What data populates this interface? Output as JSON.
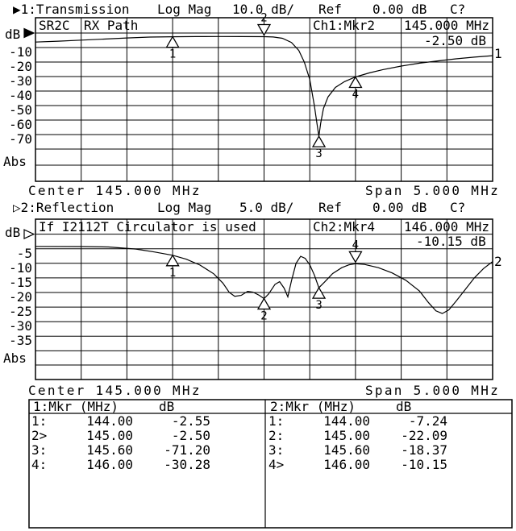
{
  "ch1": {
    "title": {
      "prefix": "▶1:Transmission",
      "mode": "Log Mag",
      "scale": "10.0 dB/",
      "ref_label": "Ref",
      "ref_value": "0.00 dB",
      "cal": "C?"
    },
    "grid_texts": {
      "label1": "SR2C",
      "label2": "RX Path",
      "marker_readout": "Ch1:Mkr2",
      "marker_freq": "145.000 MHz",
      "marker_value": "-2.50 dB"
    },
    "axis": {
      "unit": "dB",
      "ticks": [
        "-10",
        "-20",
        "-30",
        "-40",
        "-50",
        "-60",
        "-70"
      ],
      "abs": "Abs"
    },
    "curve_label": "1",
    "footer": {
      "center": "Center 145.000 MHz",
      "span": "Span 5.000 MHz"
    }
  },
  "ch2": {
    "title": {
      "prefix": "▷2:Reflection",
      "mode": "Log Mag",
      "scale": "5.0 dB/",
      "ref_label": "Ref",
      "ref_value": "0.00 dB",
      "cal": "C?"
    },
    "grid_texts": {
      "label1": "If I2112T Circulator is used",
      "marker_readout": "Ch2:Mkr4",
      "marker_freq": "146.000 MHz",
      "marker_value": "-10.15 dB"
    },
    "axis": {
      "unit": "dB",
      "ticks": [
        "-5",
        "-10",
        "-15",
        "-20",
        "-25",
        "-30",
        "-35"
      ],
      "abs": "Abs"
    },
    "curve_label": "2",
    "footer": {
      "center": "Center 145.000 MHz",
      "span": "Span 5.000 MHz"
    }
  },
  "marker_table": {
    "col1": {
      "header": "1:Mkr (MHz)",
      "unit": "dB",
      "rows": [
        {
          "n": "1:",
          "freq": "144.00",
          "db": "-2.55"
        },
        {
          "n": "2>",
          "freq": "145.00",
          "db": "-2.50"
        },
        {
          "n": "3:",
          "freq": "145.60",
          "db": "-71.20"
        },
        {
          "n": "4:",
          "freq": "146.00",
          "db": "-30.28"
        }
      ]
    },
    "col2": {
      "header": "2:Mkr (MHz)",
      "unit": "dB",
      "rows": [
        {
          "n": "1:",
          "freq": "144.00",
          "db": "-7.24"
        },
        {
          "n": "2:",
          "freq": "145.00",
          "db": "-22.09"
        },
        {
          "n": "3:",
          "freq": "145.60",
          "db": "-18.37"
        },
        {
          "n": "4>",
          "freq": "146.00",
          "db": "-10.15"
        }
      ]
    }
  },
  "colors": {
    "fg": "#000000",
    "bg": "#ffffff"
  },
  "chart_data": [
    {
      "type": "line",
      "channel": "1",
      "measurement": "Transmission",
      "trace_title": "SR2C RX Path",
      "format": "Log Mag",
      "scale_db_per_div": 10.0,
      "ref_db": 0.0,
      "center_mhz": 145.0,
      "span_mhz": 5.0,
      "xlim": [
        142.5,
        147.5
      ],
      "ylim": [
        -80,
        0
      ],
      "xlabel": "MHz",
      "ylabel": "dB",
      "grid": true,
      "series": [
        {
          "name": "Ch1 Transmission",
          "points": [
            [
              142.5,
              -6.2
            ],
            [
              142.75,
              -5.6
            ],
            [
              143.0,
              -4.9
            ],
            [
              143.25,
              -4.15
            ],
            [
              143.5,
              -3.4
            ],
            [
              143.75,
              -2.8
            ],
            [
              144.0,
              -2.55
            ],
            [
              144.25,
              -2.45
            ],
            [
              144.5,
              -2.4
            ],
            [
              144.75,
              -2.42
            ],
            [
              145.0,
              -2.5
            ],
            [
              145.1,
              -2.7
            ],
            [
              145.2,
              -3.6
            ],
            [
              145.3,
              -6.5
            ],
            [
              145.38,
              -12.0
            ],
            [
              145.44,
              -20.0
            ],
            [
              145.5,
              -32.0
            ],
            [
              145.55,
              -50.0
            ],
            [
              145.58,
              -63.0
            ],
            [
              145.6,
              -71.2
            ],
            [
              145.62,
              -62.0
            ],
            [
              145.65,
              -52.0
            ],
            [
              145.7,
              -44.0
            ],
            [
              145.78,
              -37.5
            ],
            [
              145.88,
              -33.5
            ],
            [
              146.0,
              -30.28
            ],
            [
              146.15,
              -27.5
            ],
            [
              146.3,
              -25.2
            ],
            [
              146.5,
              -22.8
            ],
            [
              146.7,
              -20.8
            ],
            [
              146.9,
              -19.2
            ],
            [
              147.1,
              -17.8
            ],
            [
              147.3,
              -16.6
            ],
            [
              147.5,
              -15.6
            ]
          ]
        }
      ],
      "markers": [
        {
          "n": 1,
          "mhz": 144.0,
          "db": -2.55,
          "active": false
        },
        {
          "n": 2,
          "mhz": 145.0,
          "db": -2.5,
          "active": true
        },
        {
          "n": 3,
          "mhz": 145.6,
          "db": -71.2,
          "active": false
        },
        {
          "n": 4,
          "mhz": 146.0,
          "db": -30.28,
          "active": false
        }
      ]
    },
    {
      "type": "line",
      "channel": "2",
      "measurement": "Reflection",
      "trace_title": "If I2112T Circulator is used",
      "format": "Log Mag",
      "scale_db_per_div": 5.0,
      "ref_db": 0.0,
      "center_mhz": 145.0,
      "span_mhz": 5.0,
      "xlim": [
        142.5,
        147.5
      ],
      "ylim": [
        -40,
        0
      ],
      "xlabel": "MHz",
      "ylabel": "dB",
      "grid": true,
      "series": [
        {
          "name": "Ch2 Reflection",
          "points": [
            [
              142.5,
              -4.2
            ],
            [
              143.0,
              -4.25
            ],
            [
              143.3,
              -4.4
            ],
            [
              143.6,
              -5.1
            ],
            [
              143.8,
              -6.1
            ],
            [
              144.0,
              -7.24
            ],
            [
              144.15,
              -8.6
            ],
            [
              144.3,
              -10.6
            ],
            [
              144.45,
              -13.6
            ],
            [
              144.55,
              -16.8
            ],
            [
              144.62,
              -20.0
            ],
            [
              144.68,
              -21.3
            ],
            [
              144.75,
              -21.0
            ],
            [
              144.82,
              -19.6
            ],
            [
              144.88,
              -19.9
            ],
            [
              144.95,
              -21.0
            ],
            [
              145.0,
              -22.09
            ],
            [
              145.05,
              -20.5
            ],
            [
              145.12,
              -17.2
            ],
            [
              145.17,
              -16.3
            ],
            [
              145.22,
              -18.5
            ],
            [
              145.26,
              -21.5
            ],
            [
              145.3,
              -16.0
            ],
            [
              145.35,
              -10.0
            ],
            [
              145.4,
              -7.6
            ],
            [
              145.45,
              -8.3
            ],
            [
              145.5,
              -10.5
            ],
            [
              145.55,
              -14.0
            ],
            [
              145.6,
              -18.37
            ],
            [
              145.66,
              -16.5
            ],
            [
              145.75,
              -13.5
            ],
            [
              145.85,
              -11.5
            ],
            [
              145.93,
              -10.5
            ],
            [
              146.0,
              -10.15
            ],
            [
              146.1,
              -10.4
            ],
            [
              146.25,
              -11.5
            ],
            [
              146.4,
              -13.3
            ],
            [
              146.55,
              -15.8
            ],
            [
              146.7,
              -19.5
            ],
            [
              146.8,
              -23.5
            ],
            [
              146.88,
              -26.3
            ],
            [
              146.95,
              -27.2
            ],
            [
              147.02,
              -26.0
            ],
            [
              147.1,
              -23.0
            ],
            [
              147.2,
              -19.0
            ],
            [
              147.3,
              -15.0
            ],
            [
              147.4,
              -11.8
            ],
            [
              147.5,
              -9.4
            ]
          ]
        }
      ],
      "markers": [
        {
          "n": 1,
          "mhz": 144.0,
          "db": -7.24,
          "active": false
        },
        {
          "n": 2,
          "mhz": 145.0,
          "db": -22.09,
          "active": false
        },
        {
          "n": 3,
          "mhz": 145.6,
          "db": -18.37,
          "active": false
        },
        {
          "n": 4,
          "mhz": 146.0,
          "db": -10.15,
          "active": true
        }
      ]
    }
  ]
}
